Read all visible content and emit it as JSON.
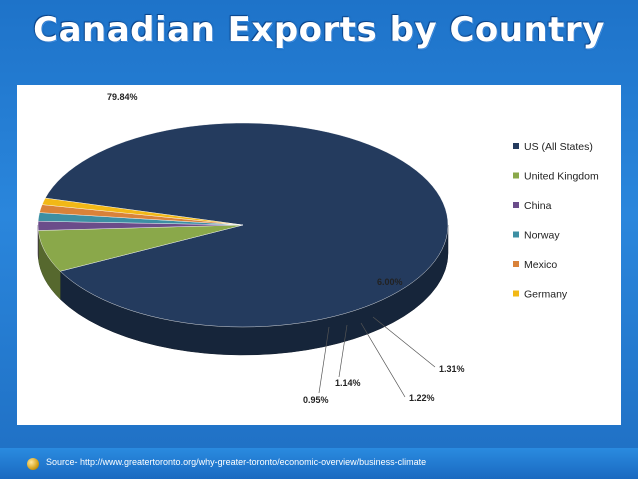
{
  "title": "Canadian Exports by Country",
  "source": "Source- http://www.greatertoronto.org/why-greater-toronto/economic-overview/business-climate",
  "chart_data": {
    "type": "pie",
    "title": "",
    "categories": [
      "US (All States)",
      "United Kingdom",
      "China",
      "Norway",
      "Mexico",
      "Germany"
    ],
    "values": [
      79.84,
      6.0,
      1.31,
      1.22,
      1.14,
      0.95
    ],
    "labels": [
      "79.84%",
      "6.00%",
      "1.31%",
      "1.22%",
      "1.14%",
      "0.95%"
    ],
    "colors": [
      "#243b5e",
      "#8aa84a",
      "#6b4c8a",
      "#3d8fa3",
      "#d9823a",
      "#f2b816"
    ],
    "legend_position": "right"
  }
}
